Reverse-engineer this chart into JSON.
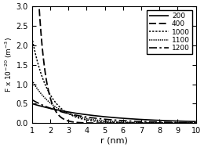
{
  "title": "",
  "xlabel": "r (nm)",
  "ylabel": "F x 10$^{-20}$ (m$^{-3}$)",
  "xlim": [
    1,
    10
  ],
  "ylim": [
    0,
    3
  ],
  "yticks": [
    0,
    0.5,
    1.0,
    1.5,
    2.0,
    2.5,
    3.0
  ],
  "xticks": [
    1,
    2,
    3,
    4,
    5,
    6,
    7,
    8,
    9,
    10
  ],
  "legend_entries": [
    {
      "label": "200",
      "ls": "solid",
      "lw": 1.2
    },
    {
      "label": "400",
      "ls": "dashed",
      "lw": 1.2
    },
    {
      "label": "1000",
      "ls": "dotted_coarse",
      "lw": 1.0
    },
    {
      "label": "1100",
      "ls": "dotted_fine",
      "lw": 1.0
    },
    {
      "label": "1200",
      "ls": "dashdot",
      "lw": 1.2
    }
  ],
  "curves": [
    {
      "label": "200",
      "A": 0.52,
      "n": 3.5,
      "r_min": 1.0
    },
    {
      "label": "400",
      "A": 6.5,
      "n": 8.5,
      "r_min": 1.0
    },
    {
      "label": "1000",
      "A": 1.8,
      "n": 5.0,
      "r_min": 1.0
    },
    {
      "label": "1100",
      "A": 0.95,
      "n": 4.2,
      "r_min": 1.0
    },
    {
      "label": "1200",
      "A": 0.55,
      "n": 3.2,
      "r_min": 1.0
    }
  ]
}
